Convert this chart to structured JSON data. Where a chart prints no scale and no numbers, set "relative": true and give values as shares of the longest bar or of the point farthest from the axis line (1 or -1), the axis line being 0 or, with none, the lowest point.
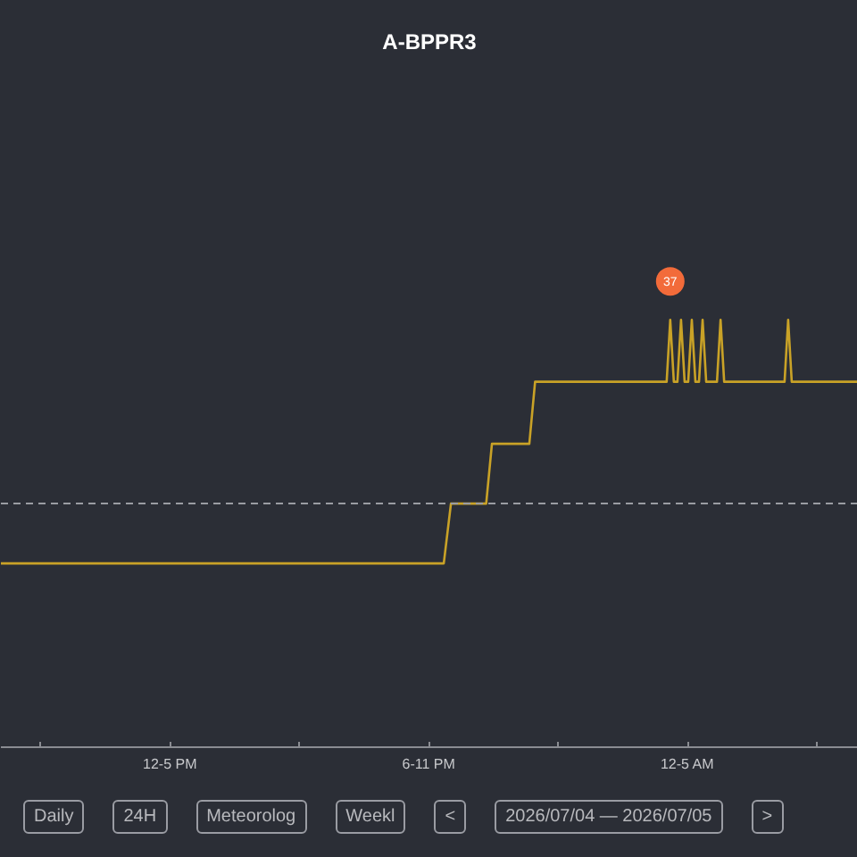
{
  "chart_data": {
    "type": "line",
    "title": "A-BPPR3",
    "relative": true,
    "x": [
      "2026-07-04T11:05",
      "2026-07-04T21:21",
      "2026-07-04T21:31",
      "2026-07-04T22:20",
      "2026-07-04T22:28",
      "2026-07-04T23:20",
      "2026-07-04T23:28",
      "2026-07-05T02:31",
      "2026-07-05T02:36",
      "2026-07-05T02:41",
      "2026-07-05T02:46",
      "2026-07-05T02:51",
      "2026-07-05T02:56",
      "2026-07-05T03:01",
      "2026-07-05T03:06",
      "2026-07-05T03:11",
      "2026-07-05T03:16",
      "2026-07-05T03:21",
      "2026-07-05T03:26",
      "2026-07-05T03:41",
      "2026-07-05T03:46",
      "2026-07-05T03:51",
      "2026-07-05T05:15",
      "2026-07-05T05:20",
      "2026-07-05T05:25",
      "2026-07-05T06:57"
    ],
    "series": [
      {
        "color": "#c9a227",
        "values": [
          0.43,
          0.43,
          0.57,
          0.57,
          0.71,
          0.71,
          0.855,
          0.855,
          1,
          0.855,
          0.855,
          1,
          0.855,
          0.855,
          1,
          0.855,
          0.855,
          1,
          0.855,
          0.855,
          1,
          0.855,
          0.855,
          1,
          0.855,
          0.855
        ]
      }
    ],
    "xlim": [
      "2026-07-04T11:05",
      "2026-07-05T06:57"
    ],
    "xticks": [
      {
        "value": "2026-07-04T12:00",
        "label": null
      },
      {
        "value": "2026-07-04T15:00",
        "label": "12-5 PM"
      },
      {
        "value": "2026-07-04T18:00",
        "label": null
      },
      {
        "value": "2026-07-04T21:00",
        "label": "6-11 PM"
      },
      {
        "value": "2026-07-05T00:00",
        "label": null
      },
      {
        "value": "2026-07-05T03:00",
        "label": "12-5 AM"
      },
      {
        "value": "2026-07-05T06:00",
        "label": null
      }
    ],
    "tick_labels": "x",
    "ref_lines": [
      {
        "axis": "y",
        "value": 0.57,
        "color": "#9a9ca3",
        "line_style": "dashed"
      }
    ],
    "annotations": [
      {
        "text": "37",
        "x": "2026-07-05T02:36",
        "y": 1
      },
      "Daily",
      "24H",
      "Meteorolog",
      "Weekl",
      "<",
      "2026/07/04 — 2026/07/05",
      ">"
    ],
    "grid": false
  }
}
